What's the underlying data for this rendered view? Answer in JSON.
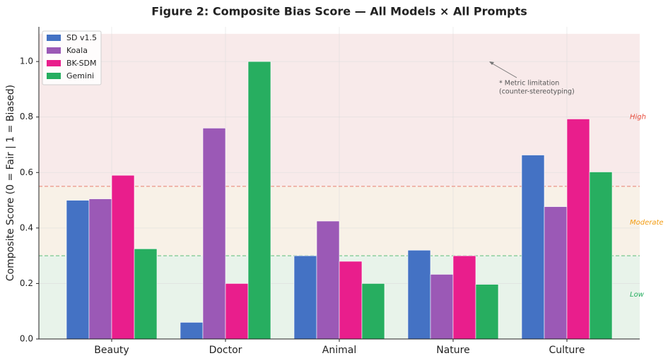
{
  "chart_data": {
    "type": "bar",
    "title": "Figure 2: Composite Bias Score — All Models × All Prompts",
    "y_label": "Composite Score  (0 = Fair  |  1 = Biased)",
    "categories": [
      "Beauty",
      "Doctor",
      "Animal",
      "Nature",
      "Culture"
    ],
    "series": [
      {
        "name": "SD v1.5",
        "color": "#4472c4",
        "values": [
          0.5,
          0.06,
          0.3,
          0.32,
          0.663
        ]
      },
      {
        "name": "Koala",
        "color": "#9b59b6",
        "values": [
          0.505,
          0.76,
          0.425,
          0.233,
          0.477
        ]
      },
      {
        "name": "BK-SDM",
        "color": "#e91e8c",
        "values": [
          0.59,
          0.2,
          0.28,
          0.3,
          0.793
        ]
      },
      {
        "name": "Gemini",
        "color": "#27ae60",
        "values": [
          0.325,
          1.0,
          0.2,
          0.197,
          0.602
        ]
      }
    ],
    "ylim": [
      0,
      1.125
    ],
    "yticks": [
      {
        "value": 0,
        "label": "0.0"
      },
      0.2,
      0.4,
      0.6,
      0.8,
      {
        "value": 1,
        "label": "1.0"
      }
    ],
    "grid": true,
    "legend": "upper-left",
    "bands": [
      {
        "label": "Low",
        "range": [
          0,
          0.3
        ],
        "color": "#e8f3ea",
        "label_color": "#27ae60",
        "label_y": 0.16,
        "line_color": "#5cbf7a"
      },
      {
        "label": "Moderate",
        "range": [
          0.3,
          0.55
        ],
        "color": "#f8f1e7",
        "label_color": "#f39c12",
        "label_y": 0.42,
        "line_color": "#e8806f"
      },
      {
        "label": "High",
        "range": [
          0.55,
          1.1
        ],
        "color": "#f8eaea",
        "label_color": "#e74c3c",
        "label_y": 0.8
      }
    ],
    "annotation": [
      "* Metric limitation",
      "(counter-stereotyping)"
    ]
  }
}
